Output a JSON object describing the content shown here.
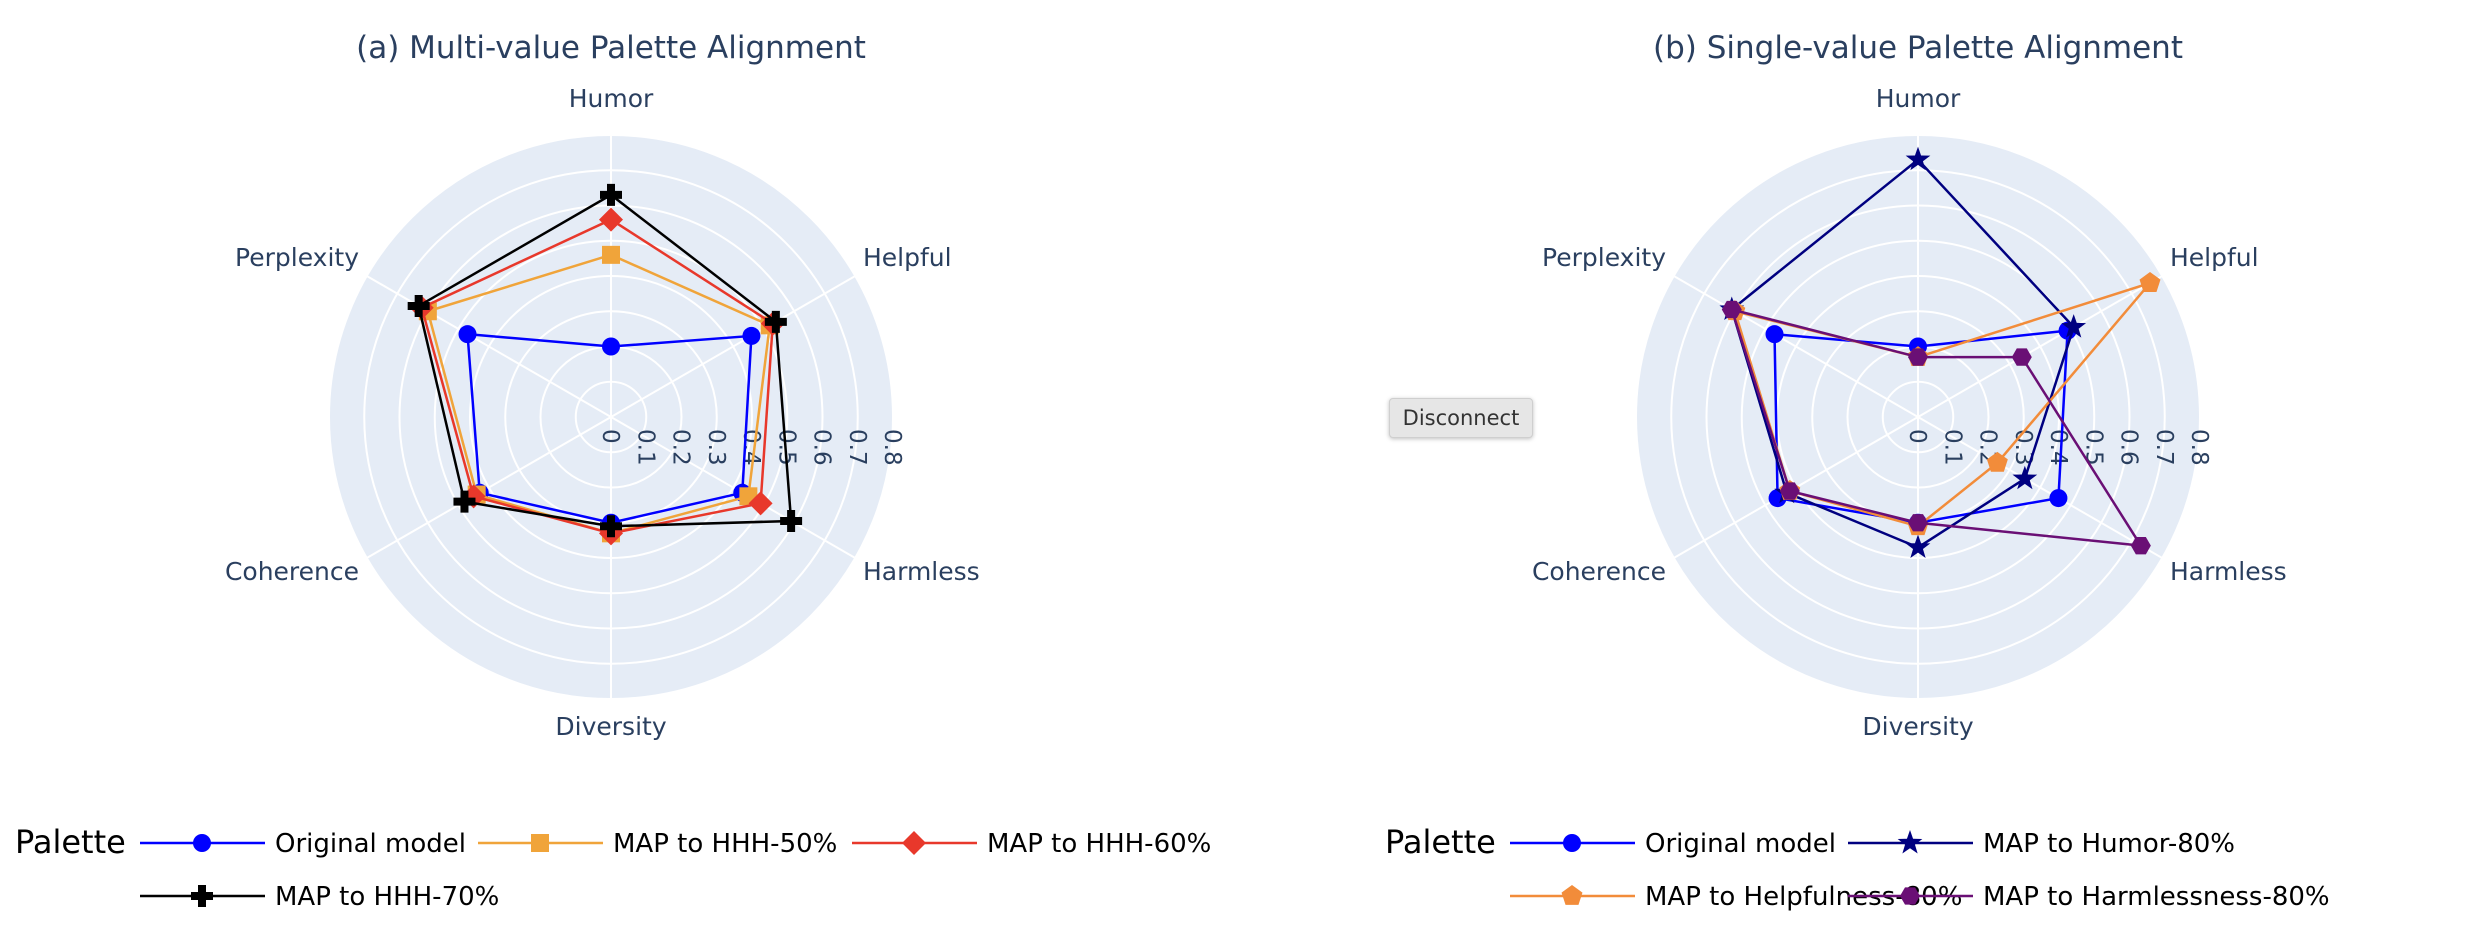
{
  "ui": {
    "disconnect_label": "Disconnect"
  },
  "legend_title": "Palette",
  "colors": {
    "original": "#0000ff",
    "hhh50": "#f0a43a",
    "hhh60": "#e8382b",
    "hhh70": "#000000",
    "humor80": "#000080",
    "helpful80": "#f28c3a",
    "harmless80": "#6a0f75",
    "polar_bg": "#e5ecf6"
  },
  "chart_data": [
    {
      "type": "radar",
      "title": "(a) Multi-value Palette Alignment",
      "axes": [
        "Humor",
        "Helpful",
        "Harmless",
        "Diversity",
        "Coherence",
        "Perplexity"
      ],
      "radial_range": [
        0,
        0.8
      ],
      "radial_ticks": [
        "0",
        "0.1",
        "0.2",
        "0.3",
        "0.4",
        "0.5",
        "0.6",
        "0.7",
        "0.8"
      ],
      "grid": true,
      "legend_position": "bottom",
      "series": [
        {
          "name": "Original model",
          "values": [
            0.2,
            0.46,
            0.43,
            0.3,
            0.43,
            0.47
          ],
          "marker": "circle",
          "color": "#0000ff"
        },
        {
          "name": "MAP to HHH-50%",
          "values": [
            0.46,
            0.52,
            0.45,
            0.33,
            0.44,
            0.6
          ],
          "marker": "square",
          "color": "#f0a43a"
        },
        {
          "name": "MAP to HHH-60%",
          "values": [
            0.56,
            0.53,
            0.49,
            0.33,
            0.45,
            0.62
          ],
          "marker": "diamond",
          "color": "#e8382b"
        },
        {
          "name": "MAP to HHH-70%",
          "values": [
            0.63,
            0.54,
            0.59,
            0.31,
            0.48,
            0.63
          ],
          "marker": "cross",
          "color": "#000000"
        }
      ]
    },
    {
      "type": "radar",
      "title": "(b) Single-value Palette Alignment",
      "axes": [
        "Humor",
        "Helpful",
        "Harmless",
        "Diversity",
        "Coherence",
        "Perplexity"
      ],
      "radial_range": [
        0,
        0.8
      ],
      "radial_ticks": [
        "0",
        "0.1",
        "0.2",
        "0.3",
        "0.4",
        "0.5",
        "0.6",
        "0.7",
        "0.8"
      ],
      "grid": true,
      "legend_position": "bottom",
      "series": [
        {
          "name": "Original model",
          "values": [
            0.2,
            0.49,
            0.46,
            0.3,
            0.46,
            0.47
          ],
          "marker": "circle",
          "color": "#0000ff"
        },
        {
          "name": "MAP to Humor-80%",
          "values": [
            0.73,
            0.51,
            0.35,
            0.37,
            0.43,
            0.61
          ],
          "marker": "star",
          "color": "#000080"
        },
        {
          "name": "MAP to Helpfulness-80%",
          "values": [
            0.17,
            0.76,
            0.26,
            0.31,
            0.42,
            0.6
          ],
          "marker": "pentagon",
          "color": "#f28c3a"
        },
        {
          "name": "MAP to Harmlessness-80%",
          "values": [
            0.17,
            0.34,
            0.73,
            0.3,
            0.42,
            0.61
          ],
          "marker": "hexagon",
          "color": "#6a0f75"
        }
      ]
    }
  ]
}
